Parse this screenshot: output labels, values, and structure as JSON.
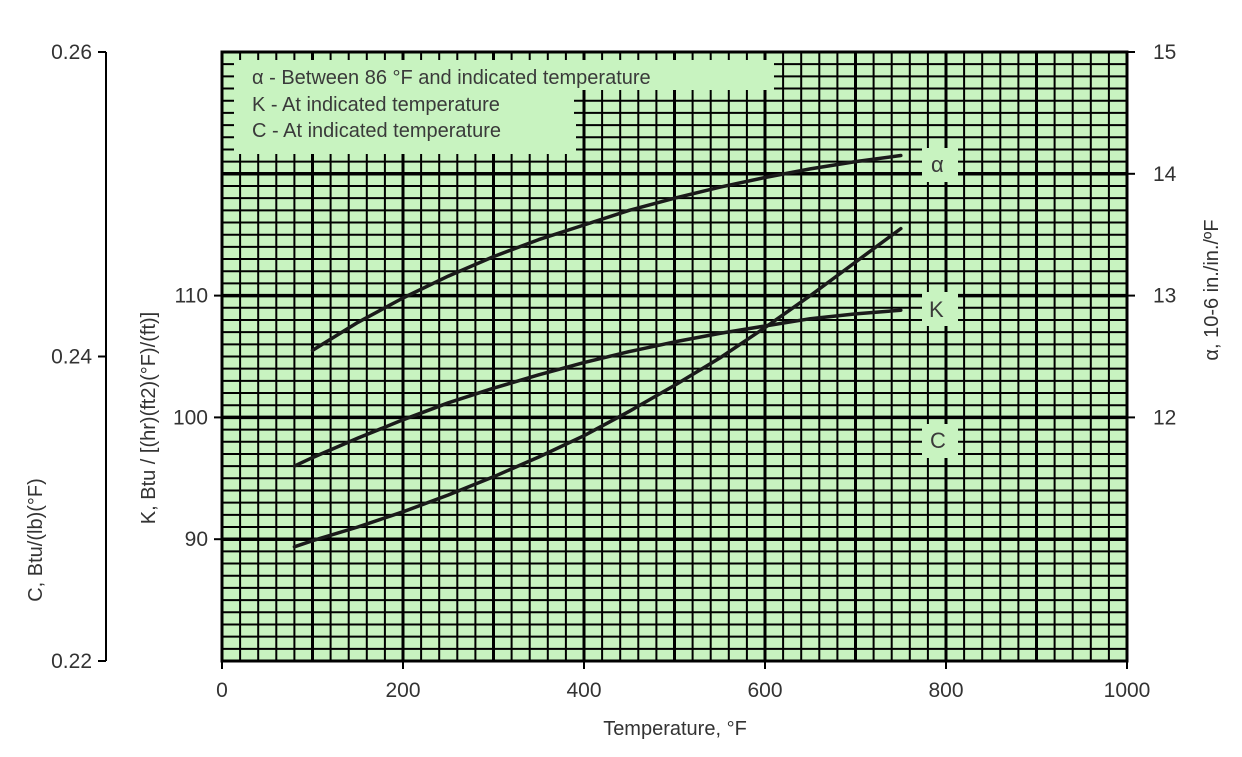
{
  "chart_data": {
    "type": "line",
    "xlabel": "Temperature, °F",
    "xlim": [
      0,
      1000
    ],
    "x_ticks": [
      "0",
      "200",
      "400",
      "600",
      "800",
      "1000"
    ],
    "axes": {
      "k": {
        "label": "K, Btu / [(hr)(ft2)(°F)/(ft)]",
        "ylim": [
          80,
          130
        ],
        "ticks": [
          {
            "value": 90,
            "label": "90"
          },
          {
            "value": 100,
            "label": "100"
          },
          {
            "value": 110,
            "label": "110"
          }
        ]
      },
      "c": {
        "label": "C, Btu/(lb)(°F)",
        "ylim": [
          0.22,
          0.26
        ],
        "ticks": [
          {
            "value": 0.22,
            "label": "0.22"
          },
          {
            "value": 0.24,
            "label": "0.24"
          },
          {
            "value": 0.26,
            "label": "0.26"
          }
        ]
      },
      "alpha": {
        "label": "α, 10-6 in./in./ºF",
        "ylim": [
          10,
          15
        ],
        "ticks": [
          {
            "value": 12,
            "label": "12"
          },
          {
            "value": 13,
            "label": "13"
          },
          {
            "value": 14,
            "label": "14"
          },
          {
            "value": 15,
            "label": "15"
          }
        ]
      }
    },
    "legend": {
      "placement": "top-left",
      "lines": [
        "α - Between 86 °F and indicated temperature",
        "K - At indicated temperature",
        "C - At indicated temperature"
      ]
    },
    "series": [
      {
        "name": "α",
        "axis": "alpha",
        "x": [
          100,
          150,
          200,
          250,
          300,
          350,
          400,
          450,
          500,
          550,
          600,
          650,
          700,
          750
        ],
        "y": [
          12.55,
          12.78,
          12.98,
          13.16,
          13.32,
          13.46,
          13.58,
          13.7,
          13.8,
          13.89,
          13.97,
          14.04,
          14.1,
          14.15
        ]
      },
      {
        "name": "K",
        "axis": "k",
        "x": [
          80,
          100,
          150,
          200,
          250,
          300,
          350,
          400,
          450,
          500,
          550,
          600,
          650,
          700,
          750
        ],
        "y": [
          96.0,
          96.7,
          98.3,
          99.8,
          101.2,
          102.4,
          103.5,
          104.5,
          105.4,
          106.2,
          106.9,
          107.5,
          108.1,
          108.5,
          108.8
        ]
      },
      {
        "name": "C",
        "axis": "c",
        "x": [
          80,
          100,
          150,
          200,
          250,
          300,
          350,
          400,
          450,
          500,
          550,
          600,
          650,
          700,
          750
        ],
        "y": [
          0.2275,
          0.2279,
          0.2288,
          0.2298,
          0.2309,
          0.2321,
          0.2334,
          0.2348,
          0.2364,
          0.2381,
          0.2399,
          0.2419,
          0.244,
          0.2462,
          0.2484
        ]
      }
    ],
    "grid": true,
    "colors": {
      "plot_background": "#c8f3c0",
      "grid_minor": "#000000",
      "grid_major": "#000000",
      "curve": "#1a1a1a",
      "label_box": "#c8f3c0"
    }
  }
}
